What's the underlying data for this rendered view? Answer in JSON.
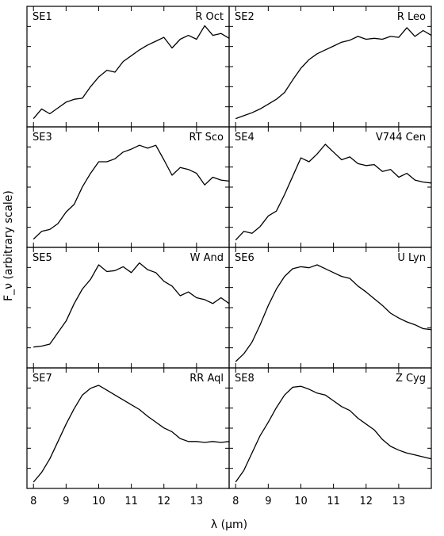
{
  "chart_data": {
    "type": "line",
    "layout": "4x2 grid of panels",
    "xlabel": "λ (μm)",
    "ylabel": "F_ν (arbitrary scale)",
    "xlim": [
      7.8,
      14.0
    ],
    "xticks": [
      8,
      9,
      10,
      11,
      12,
      13
    ],
    "ylim": [
      0,
      1
    ],
    "y_tick_labels_shown": false,
    "grid": false,
    "panels": [
      {
        "id": "SE1",
        "star": "R Oct",
        "x": [
          8.0,
          8.25,
          8.5,
          8.75,
          9.0,
          9.25,
          9.5,
          9.75,
          10.0,
          10.25,
          10.5,
          10.75,
          11.0,
          11.25,
          11.5,
          11.75,
          12.0,
          12.25,
          12.5,
          12.75,
          13.0,
          13.25,
          13.5,
          13.75,
          14.0
        ],
        "y": [
          0.02,
          0.12,
          0.07,
          0.13,
          0.19,
          0.22,
          0.23,
          0.35,
          0.45,
          0.52,
          0.5,
          0.61,
          0.67,
          0.73,
          0.78,
          0.82,
          0.86,
          0.75,
          0.84,
          0.88,
          0.84,
          0.98,
          0.88,
          0.9,
          0.85
        ]
      },
      {
        "id": "SE2",
        "star": "R Leo",
        "x": [
          8.0,
          8.25,
          8.5,
          8.75,
          9.0,
          9.25,
          9.5,
          9.75,
          10.0,
          10.25,
          10.5,
          10.75,
          11.0,
          11.25,
          11.5,
          11.75,
          12.0,
          12.25,
          12.5,
          12.75,
          13.0,
          13.25,
          13.5,
          13.75,
          14.0
        ],
        "y": [
          0.02,
          0.05,
          0.08,
          0.12,
          0.17,
          0.22,
          0.29,
          0.42,
          0.54,
          0.63,
          0.69,
          0.73,
          0.77,
          0.81,
          0.83,
          0.87,
          0.84,
          0.85,
          0.84,
          0.87,
          0.86,
          0.96,
          0.87,
          0.93,
          0.88
        ]
      },
      {
        "id": "SE3",
        "star": "RT Sco",
        "x": [
          8.0,
          8.25,
          8.5,
          8.75,
          9.0,
          9.25,
          9.5,
          9.75,
          10.0,
          10.25,
          10.5,
          10.75,
          11.0,
          11.25,
          11.5,
          11.75,
          12.0,
          12.25,
          12.5,
          12.75,
          13.0,
          13.25,
          13.5,
          13.75,
          14.0
        ],
        "y": [
          0.02,
          0.1,
          0.12,
          0.18,
          0.3,
          0.38,
          0.56,
          0.7,
          0.82,
          0.82,
          0.85,
          0.92,
          0.95,
          0.99,
          0.96,
          0.99,
          0.84,
          0.68,
          0.76,
          0.74,
          0.7,
          0.58,
          0.66,
          0.63,
          0.62
        ]
      },
      {
        "id": "SE4",
        "star": "V744 Cen",
        "x": [
          8.0,
          8.25,
          8.5,
          8.75,
          9.0,
          9.25,
          9.5,
          9.75,
          10.0,
          10.25,
          10.5,
          10.75,
          11.0,
          11.25,
          11.5,
          11.75,
          12.0,
          12.25,
          12.5,
          12.75,
          13.0,
          13.25,
          13.5,
          13.75,
          14.0
        ],
        "y": [
          0.01,
          0.1,
          0.08,
          0.15,
          0.26,
          0.31,
          0.48,
          0.67,
          0.86,
          0.82,
          0.9,
          1.0,
          0.92,
          0.84,
          0.87,
          0.8,
          0.78,
          0.79,
          0.72,
          0.74,
          0.66,
          0.7,
          0.63,
          0.61,
          0.6
        ]
      },
      {
        "id": "SE5",
        "star": "W And",
        "x": [
          8.0,
          8.25,
          8.5,
          8.75,
          9.0,
          9.25,
          9.5,
          9.75,
          10.0,
          10.25,
          10.5,
          10.75,
          11.0,
          11.25,
          11.5,
          11.75,
          12.0,
          12.25,
          12.5,
          12.75,
          13.0,
          13.25,
          13.5,
          13.75,
          14.0
        ],
        "y": [
          0.15,
          0.16,
          0.18,
          0.3,
          0.42,
          0.6,
          0.75,
          0.85,
          1.0,
          0.93,
          0.94,
          0.98,
          0.92,
          1.02,
          0.95,
          0.92,
          0.83,
          0.78,
          0.68,
          0.72,
          0.66,
          0.64,
          0.6,
          0.66,
          0.6
        ]
      },
      {
        "id": "SE6",
        "star": "U Lyn",
        "x": [
          8.0,
          8.25,
          8.5,
          8.75,
          9.0,
          9.25,
          9.5,
          9.75,
          10.0,
          10.25,
          10.5,
          10.75,
          11.0,
          11.25,
          11.5,
          11.75,
          12.0,
          12.25,
          12.5,
          12.75,
          13.0,
          13.25,
          13.5,
          13.75,
          14.0
        ],
        "y": [
          0.0,
          0.08,
          0.2,
          0.38,
          0.58,
          0.75,
          0.88,
          0.96,
          0.98,
          0.97,
          1.0,
          0.96,
          0.92,
          0.88,
          0.86,
          0.78,
          0.72,
          0.65,
          0.58,
          0.5,
          0.45,
          0.41,
          0.38,
          0.34,
          0.33
        ]
      },
      {
        "id": "SE7",
        "star": "RR Aql",
        "x": [
          8.0,
          8.25,
          8.5,
          8.75,
          9.0,
          9.25,
          9.5,
          9.75,
          10.0,
          10.25,
          10.5,
          10.75,
          11.0,
          11.25,
          11.5,
          11.75,
          12.0,
          12.25,
          12.5,
          12.75,
          13.0,
          13.25,
          13.5,
          13.75,
          14.0
        ],
        "y": [
          0.0,
          0.1,
          0.24,
          0.42,
          0.6,
          0.76,
          0.9,
          0.97,
          1.0,
          0.95,
          0.9,
          0.85,
          0.8,
          0.75,
          0.68,
          0.62,
          0.56,
          0.52,
          0.45,
          0.42,
          0.42,
          0.41,
          0.42,
          0.41,
          0.42
        ]
      },
      {
        "id": "SE8",
        "star": "Z Cyg",
        "x": [
          8.0,
          8.25,
          8.5,
          8.75,
          9.0,
          9.25,
          9.5,
          9.75,
          10.0,
          10.25,
          10.5,
          10.75,
          11.0,
          11.25,
          11.5,
          11.75,
          12.0,
          12.25,
          12.5,
          12.75,
          13.0,
          13.25,
          13.5,
          13.75,
          14.0
        ],
        "y": [
          0.0,
          0.12,
          0.3,
          0.48,
          0.62,
          0.77,
          0.9,
          0.98,
          0.99,
          0.96,
          0.92,
          0.9,
          0.84,
          0.78,
          0.74,
          0.66,
          0.6,
          0.54,
          0.44,
          0.37,
          0.33,
          0.3,
          0.28,
          0.26,
          0.24
        ]
      }
    ]
  }
}
